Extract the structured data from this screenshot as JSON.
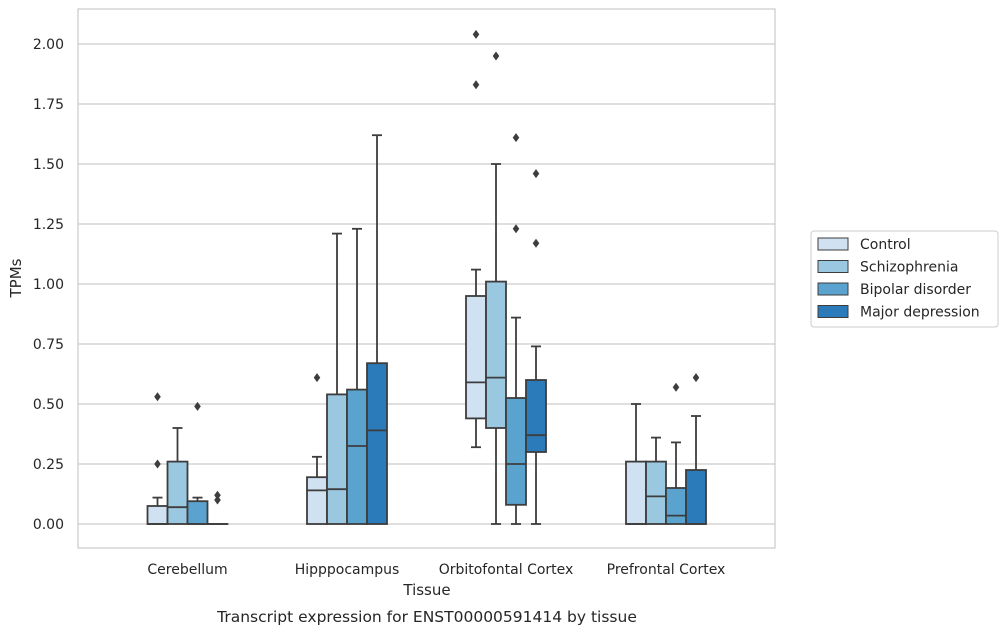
{
  "caption": "Transcript expression for ENST00000591414 by tissue",
  "chart_data": {
    "type": "box",
    "xlabel": "Tissue",
    "ylabel": "TPMs",
    "ylim": [
      -0.1,
      2.15
    ],
    "yticks": [
      "0.00",
      "0.25",
      "0.50",
      "0.75",
      "1.00",
      "1.25",
      "1.50",
      "1.75",
      "2.00"
    ],
    "yticks_values": [
      0,
      0.25,
      0.5,
      0.75,
      1.0,
      1.25,
      1.5,
      1.75,
      2.0
    ],
    "grid": "horizontal",
    "legend_position": "right",
    "categories": [
      "Cerebellum",
      "Hipppocampus",
      "Orbitofontal Cortex",
      "Prefrontal Cortex"
    ],
    "series": [
      {
        "name": "Control",
        "color": "#d0e1f2",
        "boxes": [
          {
            "whislo": 0,
            "q1": 0,
            "med": 0,
            "q3": 0.075,
            "whishi": 0.11,
            "fliers": [
              0.25,
              0.53
            ]
          },
          {
            "whislo": 0,
            "q1": 0,
            "med": 0.14,
            "q3": 0.195,
            "whishi": 0.28,
            "fliers": [
              0.61
            ]
          },
          {
            "whislo": 0.32,
            "q1": 0.44,
            "med": 0.59,
            "q3": 0.95,
            "whishi": 1.06,
            "fliers": [
              1.83,
              2.04
            ]
          },
          {
            "whislo": 0,
            "q1": 0,
            "med": 0,
            "q3": 0.26,
            "whishi": 0.5,
            "fliers": []
          }
        ]
      },
      {
        "name": "Schizophrenia",
        "color": "#9ac8e0",
        "boxes": [
          {
            "whislo": 0,
            "q1": 0,
            "med": 0.07,
            "q3": 0.26,
            "whishi": 0.4,
            "fliers": []
          },
          {
            "whislo": 0,
            "q1": 0,
            "med": 0.145,
            "q3": 0.54,
            "whishi": 1.21,
            "fliers": []
          },
          {
            "whislo": 0,
            "q1": 0.4,
            "med": 0.61,
            "q3": 1.01,
            "whishi": 1.5,
            "fliers": [
              1.95
            ]
          },
          {
            "whislo": 0,
            "q1": 0,
            "med": 0.115,
            "q3": 0.26,
            "whishi": 0.36,
            "fliers": []
          }
        ]
      },
      {
        "name": "Bipolar disorder",
        "color": "#5ba3cf",
        "boxes": [
          {
            "whislo": 0,
            "q1": 0,
            "med": 0,
            "q3": 0.095,
            "whishi": 0.11,
            "fliers": [
              0.49
            ]
          },
          {
            "whislo": 0,
            "q1": 0,
            "med": 0.325,
            "q3": 0.56,
            "whishi": 1.23,
            "fliers": []
          },
          {
            "whislo": 0,
            "q1": 0.08,
            "med": 0.25,
            "q3": 0.525,
            "whishi": 0.86,
            "fliers": [
              1.23,
              1.61
            ]
          },
          {
            "whislo": 0,
            "q1": 0,
            "med": 0.035,
            "q3": 0.15,
            "whishi": 0.34,
            "fliers": [
              0.57
            ]
          }
        ]
      },
      {
        "name": "Major depression",
        "color": "#2b7bba",
        "boxes": [
          {
            "whislo": 0,
            "q1": 0,
            "med": 0,
            "q3": 0,
            "whishi": 0,
            "fliers": [
              0.1,
              0.12
            ]
          },
          {
            "whislo": 0,
            "q1": 0,
            "med": 0.39,
            "q3": 0.67,
            "whishi": 1.62,
            "fliers": []
          },
          {
            "whislo": 0,
            "q1": 0.3,
            "med": 0.37,
            "q3": 0.6,
            "whishi": 0.74,
            "fliers": [
              1.17,
              1.46
            ]
          },
          {
            "whislo": 0,
            "q1": 0,
            "med": 0,
            "q3": 0.225,
            "whishi": 0.45,
            "fliers": [
              0.61
            ]
          }
        ]
      }
    ]
  }
}
